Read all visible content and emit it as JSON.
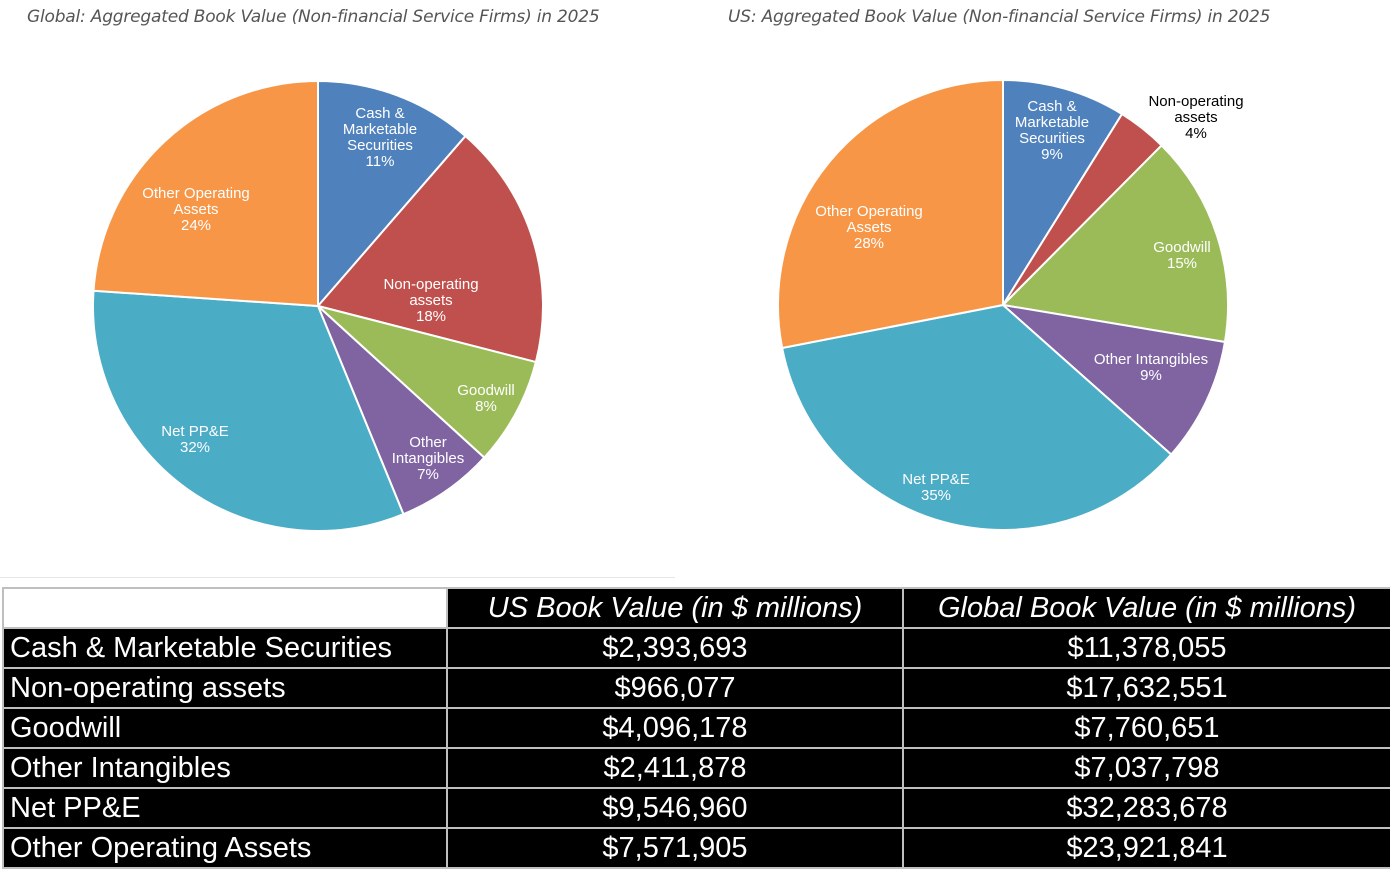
{
  "table": {
    "headers": [
      "",
      "US Book Value (in $ millions)",
      "Global Book Value (in $ millions)"
    ],
    "rows": [
      {
        "label": "Cash & Marketable Securities",
        "us": "$2,393,693",
        "global": "$11,378,055"
      },
      {
        "label": "Non-operating assets",
        "us": "$966,077",
        "global": "$17,632,551"
      },
      {
        "label": "Goodwill",
        "us": "$4,096,178",
        "global": "$7,760,651"
      },
      {
        "label": "Other Intangibles",
        "us": "$2,411,878",
        "global": "$7,037,798"
      },
      {
        "label": "Net PP&E",
        "us": "$9,546,960",
        "global": "$32,283,678"
      },
      {
        "label": "Other Operating Assets",
        "us": "$7,571,905",
        "global": "$23,921,841"
      }
    ]
  },
  "chart_data": [
    {
      "type": "pie",
      "title": "Global: Aggregated Book Value (Non-financial Service Firms) in 2025",
      "slices": [
        {
          "name": "Cash & Marketable Securities",
          "label_lines": [
            "Cash &",
            "Marketable",
            "Securities"
          ],
          "value": 11378055,
          "pct_label": "11%",
          "color": "#4F81BD"
        },
        {
          "name": "Non-operating assets",
          "label_lines": [
            "Non-operating",
            "assets"
          ],
          "value": 17632551,
          "pct_label": "18%",
          "color": "#C0504D"
        },
        {
          "name": "Goodwill",
          "label_lines": [
            "Goodwill"
          ],
          "value": 7760651,
          "pct_label": "8%",
          "color": "#9BBB59"
        },
        {
          "name": "Other Intangibles",
          "label_lines": [
            "Other",
            "Intangibles"
          ],
          "value": 7037798,
          "pct_label": "7%",
          "color": "#8064A2"
        },
        {
          "name": "Net PP&E",
          "label_lines": [
            "Net PP&E"
          ],
          "value": 32283678,
          "pct_label": "32%",
          "color": "#4BACC6"
        },
        {
          "name": "Other Operating Assets",
          "label_lines": [
            "Other Operating",
            "Assets"
          ],
          "value": 23921841,
          "pct_label": "24%",
          "color": "#F79646"
        }
      ]
    },
    {
      "type": "pie",
      "title": "US: Aggregated Book Value (Non-financial Service Firms) in 2025",
      "slices": [
        {
          "name": "Cash & Marketable Securities",
          "label_lines": [
            "Cash &",
            "Marketable",
            "Securities"
          ],
          "value": 2393693,
          "pct_label": "9%",
          "color": "#4F81BD"
        },
        {
          "name": "Non-operating assets",
          "label_lines": [
            "Non-operating",
            "assets"
          ],
          "value": 966077,
          "pct_label": "4%",
          "color": "#C0504D"
        },
        {
          "name": "Goodwill",
          "label_lines": [
            "Goodwill"
          ],
          "value": 4096178,
          "pct_label": "15%",
          "color": "#9BBB59"
        },
        {
          "name": "Other Intangibles",
          "label_lines": [
            "Other Intangibles"
          ],
          "value": 2411878,
          "pct_label": "9%",
          "color": "#8064A2"
        },
        {
          "name": "Net PP&E",
          "label_lines": [
            "Net PP&E"
          ],
          "value": 9546960,
          "pct_label": "35%",
          "color": "#4BACC6"
        },
        {
          "name": "Other Operating Assets",
          "label_lines": [
            "Other Operating",
            "Assets"
          ],
          "value": 7571905,
          "pct_label": "28%",
          "color": "#F79646"
        }
      ]
    }
  ]
}
